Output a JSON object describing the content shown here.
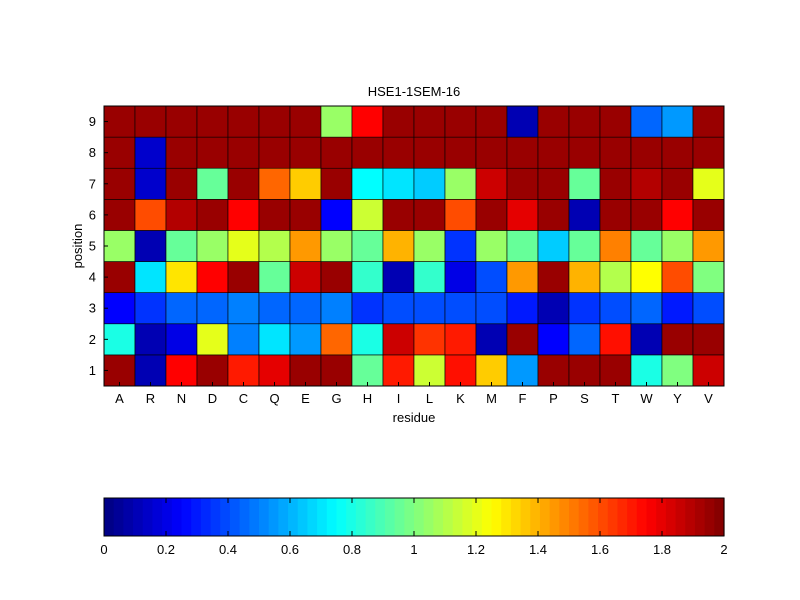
{
  "chart_data": {
    "type": "heatmap",
    "title": "HSE1-1SEM-16",
    "xlabel": "residue",
    "ylabel": "position",
    "x_categories": [
      "A",
      "R",
      "N",
      "D",
      "C",
      "Q",
      "E",
      "G",
      "H",
      "I",
      "L",
      "K",
      "M",
      "F",
      "P",
      "S",
      "T",
      "W",
      "Y",
      "V"
    ],
    "y_categories": [
      "1",
      "2",
      "3",
      "4",
      "5",
      "6",
      "7",
      "8",
      "9"
    ],
    "colormap": "jet",
    "color_range": [
      0,
      2
    ],
    "colorbar": {
      "orientation": "horizontal",
      "placement": "bottom",
      "ticks": [
        0,
        0.2,
        0.4,
        0.6,
        0.8,
        1,
        1.2,
        1.4,
        1.6,
        1.8,
        2
      ],
      "tick_labels": [
        "0",
        "0.2",
        "0.4",
        "0.6",
        "0.8",
        "1",
        "1.2",
        "1.4",
        "1.6",
        "1.8",
        "2"
      ]
    },
    "values": [
      [
        1.95,
        0.1,
        1.75,
        1.95,
        1.7,
        1.8,
        1.95,
        1.95,
        0.95,
        1.7,
        1.15,
        1.72,
        1.35,
        0.55,
        1.95,
        1.95,
        1.95,
        0.8,
        1.0,
        1.85
      ],
      [
        0.8,
        0.1,
        0.2,
        1.2,
        0.5,
        0.7,
        0.55,
        1.55,
        0.8,
        1.85,
        1.65,
        1.7,
        0.1,
        1.95,
        0.25,
        0.45,
        1.72,
        0.1,
        1.95,
        1.95
      ],
      [
        0.25,
        0.35,
        0.45,
        0.45,
        0.5,
        0.45,
        0.45,
        0.5,
        0.35,
        0.4,
        0.4,
        0.4,
        0.4,
        0.3,
        0.1,
        0.35,
        0.4,
        0.45,
        0.3,
        0.4
      ],
      [
        1.95,
        0.7,
        1.3,
        1.75,
        1.95,
        0.95,
        1.85,
        1.95,
        0.85,
        0.1,
        0.85,
        0.2,
        0.4,
        1.45,
        1.95,
        1.4,
        1.1,
        1.25,
        1.6,
        1.0
      ],
      [
        1.05,
        0.1,
        0.95,
        1.05,
        1.2,
        1.1,
        1.45,
        1.05,
        0.95,
        1.4,
        1.05,
        0.35,
        1.05,
        0.95,
        0.65,
        0.95,
        1.5,
        0.95,
        1.05,
        1.45
      ],
      [
        1.95,
        1.6,
        1.9,
        1.95,
        1.75,
        1.95,
        1.95,
        0.25,
        1.15,
        1.95,
        1.95,
        1.6,
        1.95,
        1.8,
        1.95,
        0.1,
        1.95,
        1.95,
        1.75,
        1.95
      ],
      [
        1.95,
        0.15,
        1.95,
        0.95,
        1.95,
        1.55,
        1.35,
        1.95,
        0.75,
        0.7,
        0.65,
        1.05,
        1.85,
        1.95,
        1.95,
        0.95,
        1.95,
        1.9,
        1.95,
        1.2
      ],
      [
        1.95,
        0.15,
        1.95,
        1.95,
        1.95,
        1.95,
        1.95,
        1.95,
        1.95,
        1.95,
        1.95,
        1.95,
        1.95,
        1.95,
        1.95,
        1.95,
        1.95,
        1.95,
        1.95,
        1.95
      ],
      [
        1.95,
        1.95,
        1.95,
        1.95,
        1.95,
        1.95,
        1.95,
        1.05,
        1.75,
        1.95,
        1.95,
        1.95,
        1.95,
        0.1,
        1.95,
        1.95,
        1.95,
        0.45,
        0.55,
        1.95
      ]
    ]
  }
}
